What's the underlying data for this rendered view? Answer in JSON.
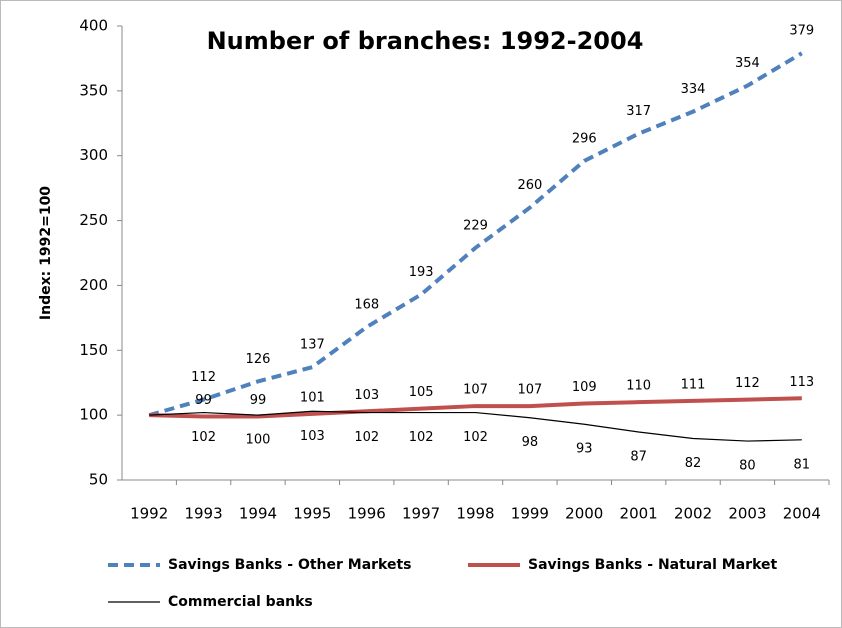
{
  "chart_data": {
    "type": "line",
    "title": "Number of branches: 1992-2004",
    "y_label": "Index: 1992=100",
    "categories": [
      "1992",
      "1993",
      "1994",
      "1995",
      "1996",
      "1997",
      "1998",
      "1999",
      "2000",
      "2001",
      "2002",
      "2003",
      "2004"
    ],
    "series": [
      {
        "name": "Savings Banks - Other Markets",
        "color": "#4f81bd",
        "dash": true,
        "values": [
          100,
          112,
          126,
          137,
          168,
          193,
          229,
          260,
          296,
          317,
          334,
          354,
          379
        ]
      },
      {
        "name": "Savings Banks - Natural Market",
        "color": "#c0504d",
        "dash": false,
        "values": [
          100,
          99,
          99,
          101,
          103,
          105,
          107,
          107,
          109,
          110,
          111,
          112,
          113
        ]
      },
      {
        "name": "Commercial banks",
        "color": "#000000",
        "dash": false,
        "values": [
          100,
          102,
          100,
          103,
          102,
          102,
          102,
          98,
          93,
          87,
          82,
          80,
          81
        ]
      }
    ],
    "ylim": [
      50,
      400
    ],
    "yticks": [
      50,
      100,
      150,
      200,
      250,
      300,
      350,
      400
    ],
    "grid": false
  }
}
